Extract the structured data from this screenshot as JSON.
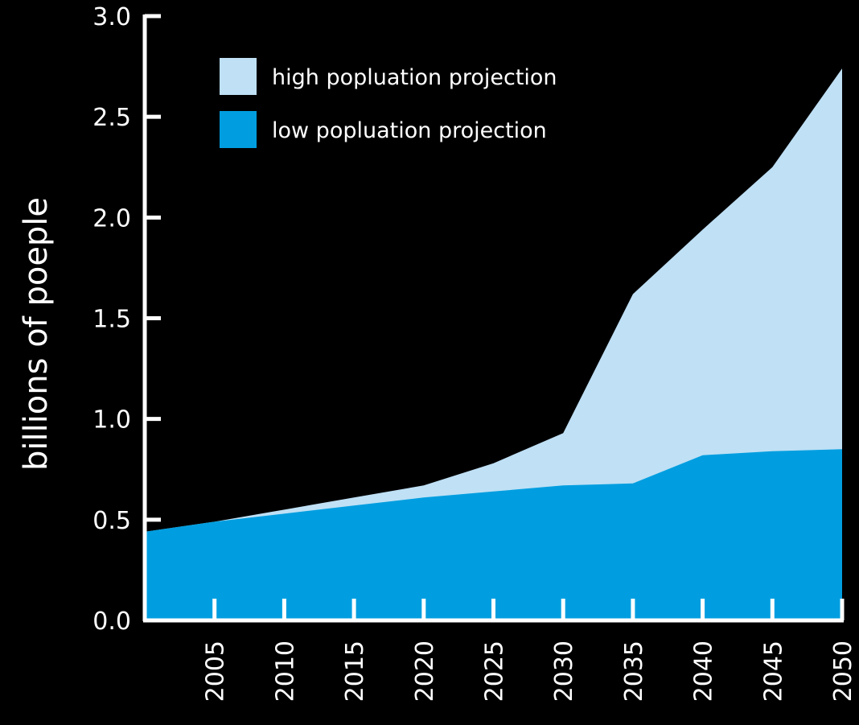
{
  "chart_data": {
    "type": "area",
    "title": "",
    "xlabel": "",
    "ylabel": "billions of poeple",
    "x": [
      2000,
      2005,
      2010,
      2015,
      2020,
      2025,
      2030,
      2035,
      2040,
      2045,
      2050
    ],
    "xticks": [
      "2005",
      "2010",
      "2015",
      "2020",
      "2025",
      "2030",
      "2035",
      "2040",
      "2045",
      "2050"
    ],
    "yticks": [
      "0.0",
      "0.5",
      "1.0",
      "1.5",
      "2.0",
      "2.5",
      "3.0"
    ],
    "ylim": [
      0,
      3.0
    ],
    "xlim": [
      2000,
      2050
    ],
    "grid": false,
    "legend_position": "top-left",
    "series": [
      {
        "name": "high popluation projection",
        "color": "#bfe0f5",
        "values": [
          0.44,
          0.49,
          0.55,
          0.61,
          0.67,
          0.78,
          0.93,
          1.62,
          1.94,
          2.25,
          2.74
        ]
      },
      {
        "name": "low popluation projection",
        "color": "#009ee0",
        "values": [
          0.44,
          0.49,
          0.53,
          0.57,
          0.61,
          0.64,
          0.67,
          0.68,
          0.82,
          0.84,
          0.85
        ]
      }
    ]
  }
}
